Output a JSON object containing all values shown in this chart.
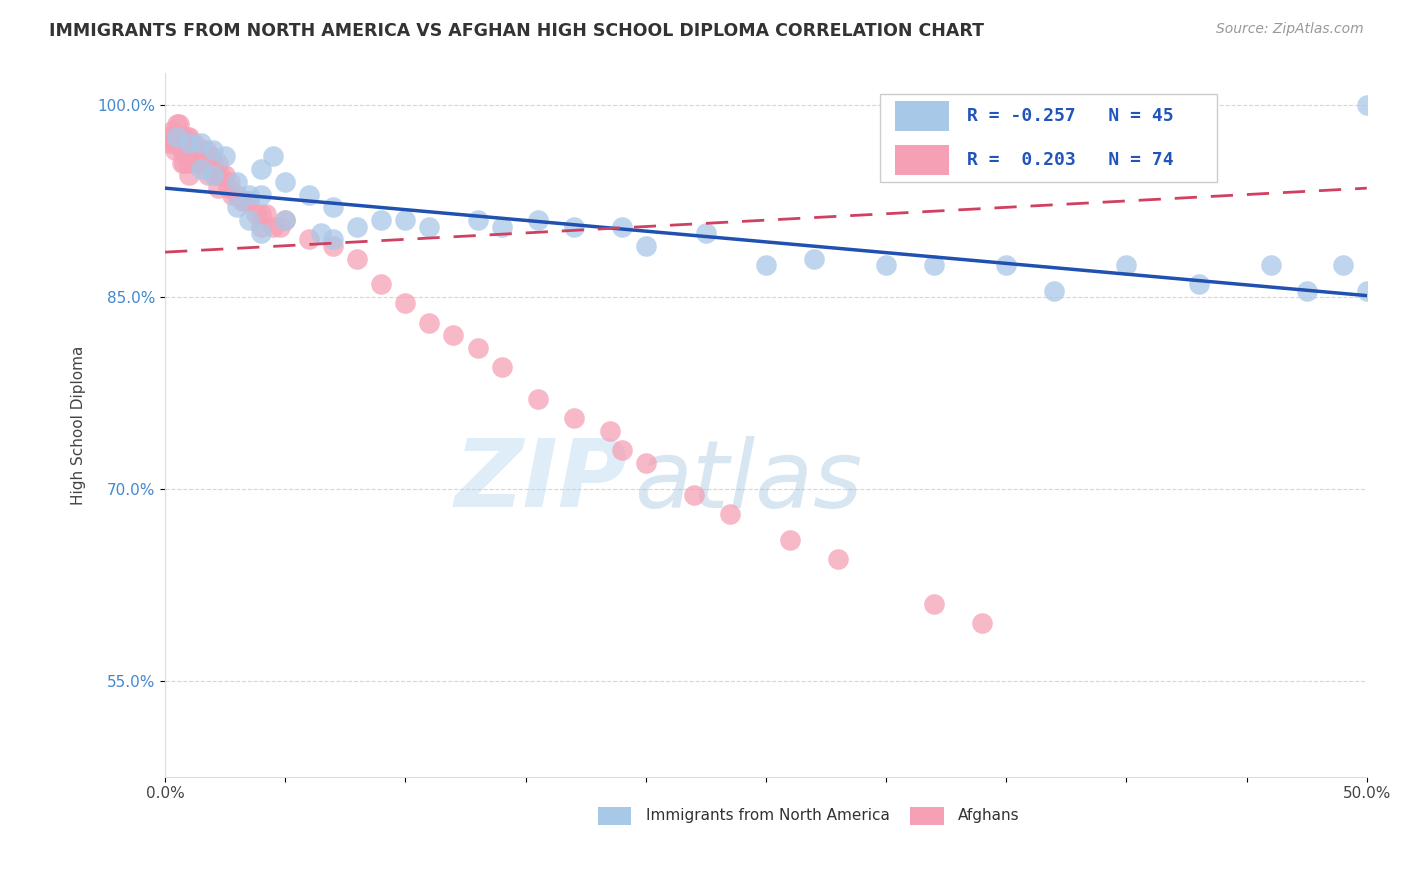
{
  "title": "IMMIGRANTS FROM NORTH AMERICA VS AFGHAN HIGH SCHOOL DIPLOMA CORRELATION CHART",
  "source": "Source: ZipAtlas.com",
  "ylabel": "High School Diploma",
  "legend_label_blue": "Immigrants from North America",
  "legend_label_pink": "Afghans",
  "R_blue": -0.257,
  "N_blue": 45,
  "R_pink": 0.203,
  "N_pink": 74,
  "xmin": 0.0,
  "xmax": 0.5,
  "ymin": 0.475,
  "ymax": 1.025,
  "ytick_positions": [
    0.55,
    0.7,
    0.85,
    1.0
  ],
  "ytick_labels": [
    "55.0%",
    "70.0%",
    "85.0%",
    "100.0%"
  ],
  "xticks": [
    0.0,
    0.05,
    0.1,
    0.15,
    0.2,
    0.25,
    0.3,
    0.35,
    0.4,
    0.45,
    0.5
  ],
  "xtick_labels": [
    "0.0%",
    "",
    "",
    "",
    "",
    "",
    "",
    "",
    "",
    "",
    "50.0%"
  ],
  "color_blue": "#a8c8e8",
  "color_pink": "#f5a0b5",
  "trendline_blue": "#2050b0",
  "trendline_pink": "#d04060",
  "watermark_zip": "ZIP",
  "watermark_atlas": "atlas",
  "blue_trend_x0": 0.0,
  "blue_trend_y0": 0.935,
  "blue_trend_x1": 0.5,
  "blue_trend_y1": 0.851,
  "pink_trend_x0": 0.0,
  "pink_trend_y0": 0.885,
  "pink_trend_x1": 0.5,
  "pink_trend_y1": 0.935,
  "blue_x": [
    0.005,
    0.01,
    0.015,
    0.015,
    0.02,
    0.02,
    0.025,
    0.03,
    0.03,
    0.035,
    0.035,
    0.04,
    0.04,
    0.04,
    0.045,
    0.05,
    0.05,
    0.06,
    0.065,
    0.07,
    0.07,
    0.08,
    0.09,
    0.1,
    0.11,
    0.13,
    0.14,
    0.155,
    0.17,
    0.19,
    0.2,
    0.225,
    0.25,
    0.27,
    0.3,
    0.32,
    0.35,
    0.37,
    0.4,
    0.43,
    0.46,
    0.475,
    0.49,
    0.5,
    0.5
  ],
  "blue_y": [
    0.975,
    0.97,
    0.97,
    0.95,
    0.965,
    0.945,
    0.96,
    0.94,
    0.92,
    0.93,
    0.91,
    0.95,
    0.93,
    0.9,
    0.96,
    0.94,
    0.91,
    0.93,
    0.9,
    0.92,
    0.895,
    0.905,
    0.91,
    0.91,
    0.905,
    0.91,
    0.905,
    0.91,
    0.905,
    0.905,
    0.89,
    0.9,
    0.875,
    0.88,
    0.875,
    0.875,
    0.875,
    0.855,
    0.875,
    0.86,
    0.875,
    0.855,
    0.875,
    0.855,
    1.0
  ],
  "pink_x": [
    0.001,
    0.002,
    0.003,
    0.004,
    0.004,
    0.005,
    0.005,
    0.006,
    0.006,
    0.007,
    0.007,
    0.007,
    0.008,
    0.008,
    0.009,
    0.009,
    0.01,
    0.01,
    0.01,
    0.01,
    0.011,
    0.012,
    0.012,
    0.013,
    0.013,
    0.014,
    0.015,
    0.015,
    0.016,
    0.017,
    0.018,
    0.018,
    0.019,
    0.02,
    0.021,
    0.022,
    0.022,
    0.023,
    0.025,
    0.026,
    0.027,
    0.028,
    0.03,
    0.032,
    0.033,
    0.034,
    0.035,
    0.038,
    0.04,
    0.04,
    0.042,
    0.045,
    0.048,
    0.05,
    0.06,
    0.07,
    0.08,
    0.09,
    0.1,
    0.11,
    0.12,
    0.13,
    0.14,
    0.155,
    0.17,
    0.185,
    0.19,
    0.2,
    0.22,
    0.235,
    0.26,
    0.28,
    0.32,
    0.34
  ],
  "pink_y": [
    0.975,
    0.97,
    0.98,
    0.97,
    0.965,
    0.985,
    0.975,
    0.985,
    0.975,
    0.975,
    0.965,
    0.955,
    0.97,
    0.955,
    0.975,
    0.96,
    0.975,
    0.965,
    0.955,
    0.945,
    0.965,
    0.97,
    0.96,
    0.965,
    0.955,
    0.96,
    0.965,
    0.955,
    0.96,
    0.965,
    0.955,
    0.945,
    0.96,
    0.955,
    0.945,
    0.955,
    0.935,
    0.945,
    0.945,
    0.935,
    0.94,
    0.93,
    0.93,
    0.925,
    0.925,
    0.925,
    0.925,
    0.915,
    0.915,
    0.905,
    0.915,
    0.905,
    0.905,
    0.91,
    0.895,
    0.89,
    0.88,
    0.86,
    0.845,
    0.83,
    0.82,
    0.81,
    0.795,
    0.77,
    0.755,
    0.745,
    0.73,
    0.72,
    0.695,
    0.68,
    0.66,
    0.645,
    0.61,
    0.595
  ]
}
